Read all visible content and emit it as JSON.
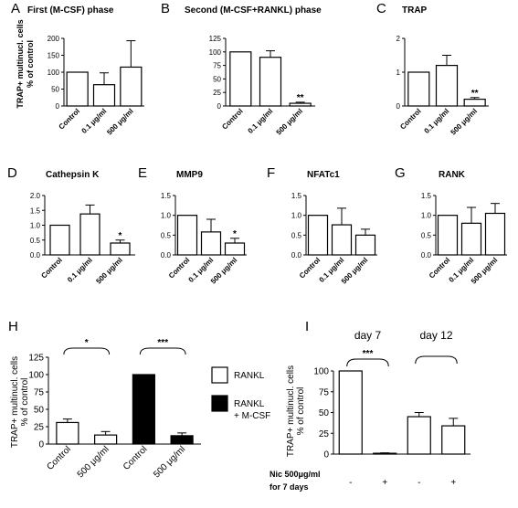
{
  "chart_data": [
    {
      "id": "A",
      "letter": "A",
      "type": "bar",
      "title": "First (M-CSF) phase",
      "ylabel": "TRAP+ multinucl. cells\n% of control",
      "categories": [
        "Control",
        "0.1 μg/ml",
        "500 μg/ml"
      ],
      "values": [
        100,
        63,
        115
      ],
      "errors": [
        0,
        35,
        78
      ],
      "ylim": [
        0,
        200
      ],
      "yticks": [
        0,
        50,
        100,
        150,
        200
      ],
      "significance": [
        "",
        "",
        ""
      ],
      "fills": [
        "#ffffff",
        "#ffffff",
        "#ffffff"
      ]
    },
    {
      "id": "B",
      "letter": "B",
      "type": "bar",
      "title": "Second (M-CSF+RANKL) phase",
      "ylabel": "",
      "categories": [
        "Control",
        "0.1 μg/ml",
        "500 μg/ml"
      ],
      "values": [
        100,
        90,
        5
      ],
      "errors": [
        0,
        12,
        2
      ],
      "ylim": [
        0,
        125
      ],
      "yticks": [
        0,
        25,
        50,
        75,
        100,
        125
      ],
      "significance": [
        "",
        "",
        "**"
      ],
      "fills": [
        "#ffffff",
        "#ffffff",
        "#ffffff"
      ]
    },
    {
      "id": "C",
      "letter": "C",
      "type": "bar",
      "title": "TRAP",
      "ylabel": "",
      "categories": [
        "Control",
        "0.1 μg/ml",
        "500 μg/ml"
      ],
      "values": [
        1.0,
        1.2,
        0.2
      ],
      "errors": [
        0,
        0.3,
        0.05
      ],
      "ylim": [
        0,
        2
      ],
      "yticks": [
        0,
        1,
        2
      ],
      "significance": [
        "",
        "",
        "**"
      ],
      "fills": [
        "#ffffff",
        "#ffffff",
        "#ffffff"
      ]
    },
    {
      "id": "D",
      "letter": "D",
      "type": "bar",
      "title": "Cathepsin K",
      "ylabel": "",
      "categories": [
        "Control",
        "0.1 μg/ml",
        "500 μg/ml"
      ],
      "values": [
        1.0,
        1.38,
        0.4
      ],
      "errors": [
        0,
        0.3,
        0.1
      ],
      "ylim": [
        0,
        2.0
      ],
      "yticks": [
        0,
        0.5,
        1.0,
        1.5,
        2.0
      ],
      "yticklabels": [
        "0.0",
        "0.5",
        "1.0",
        "1.5",
        "2.0"
      ],
      "significance": [
        "",
        "",
        "*"
      ],
      "fills": [
        "#ffffff",
        "#ffffff",
        "#ffffff"
      ]
    },
    {
      "id": "E",
      "letter": "E",
      "type": "bar",
      "title": "MMP9",
      "ylabel": "",
      "categories": [
        "Control",
        "0.1 μg/ml",
        "500 μg/ml"
      ],
      "values": [
        1.0,
        0.58,
        0.3
      ],
      "errors": [
        0,
        0.32,
        0.12
      ],
      "ylim": [
        0,
        1.5
      ],
      "yticks": [
        0,
        0.5,
        1.0,
        1.5
      ],
      "yticklabels": [
        "0.0",
        "0.5",
        "1.0",
        "1.5"
      ],
      "significance": [
        "",
        "",
        "*"
      ],
      "fills": [
        "#ffffff",
        "#ffffff",
        "#ffffff"
      ]
    },
    {
      "id": "F",
      "letter": "F",
      "type": "bar",
      "title": "NFATc1",
      "ylabel": "",
      "categories": [
        "Control",
        "0.1 μg/ml",
        "500 μg/ml"
      ],
      "values": [
        1.0,
        0.76,
        0.5
      ],
      "errors": [
        0,
        0.42,
        0.15
      ],
      "ylim": [
        0,
        1.5
      ],
      "yticks": [
        0,
        0.5,
        1.0,
        1.5
      ],
      "yticklabels": [
        "0.0",
        "0.5",
        "1.0",
        "1.5"
      ],
      "significance": [
        "",
        "",
        ""
      ],
      "fills": [
        "#ffffff",
        "#ffffff",
        "#ffffff"
      ]
    },
    {
      "id": "G",
      "letter": "G",
      "type": "bar",
      "title": "RANK",
      "ylabel": "",
      "categories": [
        "Control",
        "0.1 μg/ml",
        "500 μg/ml"
      ],
      "values": [
        1.0,
        0.8,
        1.05
      ],
      "errors": [
        0,
        0.4,
        0.25
      ],
      "ylim": [
        0,
        1.5
      ],
      "yticks": [
        0,
        0.5,
        1.0,
        1.5
      ],
      "yticklabels": [
        "0.0",
        "0.5",
        "1.0",
        "1.5"
      ],
      "significance": [
        "",
        "",
        ""
      ],
      "fills": [
        "#ffffff",
        "#ffffff",
        "#ffffff"
      ]
    },
    {
      "id": "H",
      "letter": "H",
      "type": "bar",
      "title": "",
      "ylabel": "TRAP+ multinucl. cells\n% of control",
      "categories": [
        "Control",
        "500 μg/ml",
        "Control",
        "500 μg/ml"
      ],
      "values": [
        31,
        13,
        100,
        12
      ],
      "errors": [
        5,
        5,
        0,
        4
      ],
      "ylim": [
        0,
        125
      ],
      "yticks": [
        0,
        25,
        50,
        75,
        100,
        125
      ],
      "significance_brackets": [
        {
          "from": 0,
          "to": 1,
          "label": "*"
        },
        {
          "from": 2,
          "to": 3,
          "label": "***"
        }
      ],
      "fills": [
        "#ffffff",
        "#ffffff",
        "#000000",
        "#000000"
      ],
      "legend": [
        {
          "label": "RANKL",
          "fill": "#ffffff"
        },
        {
          "label": "RANKL\n+ M-CSF",
          "fill": "#000000"
        }
      ]
    },
    {
      "id": "I",
      "letter": "I",
      "type": "bar",
      "title": "",
      "ylabel": "TRAP+ multinucl. cells\n% of control",
      "categories": [
        "-",
        "+",
        "-",
        "+"
      ],
      "values": [
        100,
        1,
        45,
        34
      ],
      "errors": [
        0,
        0.5,
        5,
        9
      ],
      "ylim": [
        0,
        100
      ],
      "yticks": [
        0,
        25,
        50,
        75,
        100
      ],
      "group_labels": [
        "day 7",
        "day 12"
      ],
      "significance_brackets": [
        {
          "from": 0,
          "to": 1,
          "label": "***"
        },
        {
          "from": 2,
          "to": 3,
          "label": ""
        }
      ],
      "fills": [
        "#ffffff",
        "#ffffff",
        "#ffffff",
        "#ffffff"
      ],
      "row_label": "Nic 500μg/ml\nfor 7 days"
    }
  ]
}
